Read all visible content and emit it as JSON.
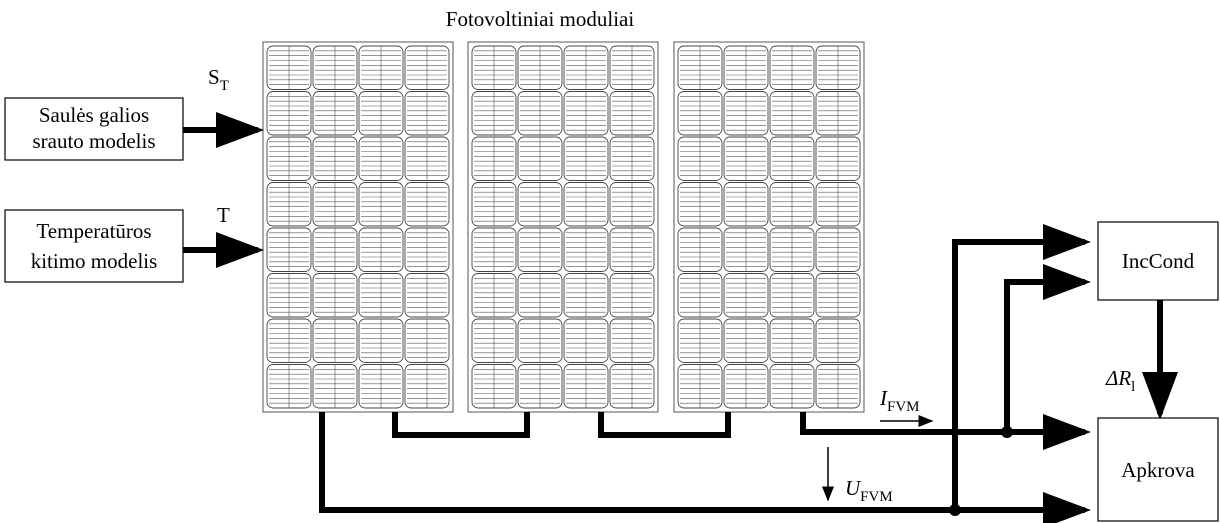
{
  "title": "Fotovoltiniai moduliai",
  "blocks": {
    "irradiance": {
      "lines": [
        "Saulės galios",
        "srauto modelis"
      ],
      "output": {
        "main": "S",
        "sub": "T"
      }
    },
    "temperature": {
      "lines": [
        "Temperatūros",
        "kitimo modelis"
      ],
      "output": "T"
    },
    "controller": "IncCond",
    "load": "Apkrova"
  },
  "signals": {
    "delta_r": {
      "main": "ΔR",
      "sub": "l"
    },
    "current": {
      "main": "I",
      "sub": "FVM"
    },
    "voltage": {
      "main": "U",
      "sub": "FVM"
    }
  }
}
